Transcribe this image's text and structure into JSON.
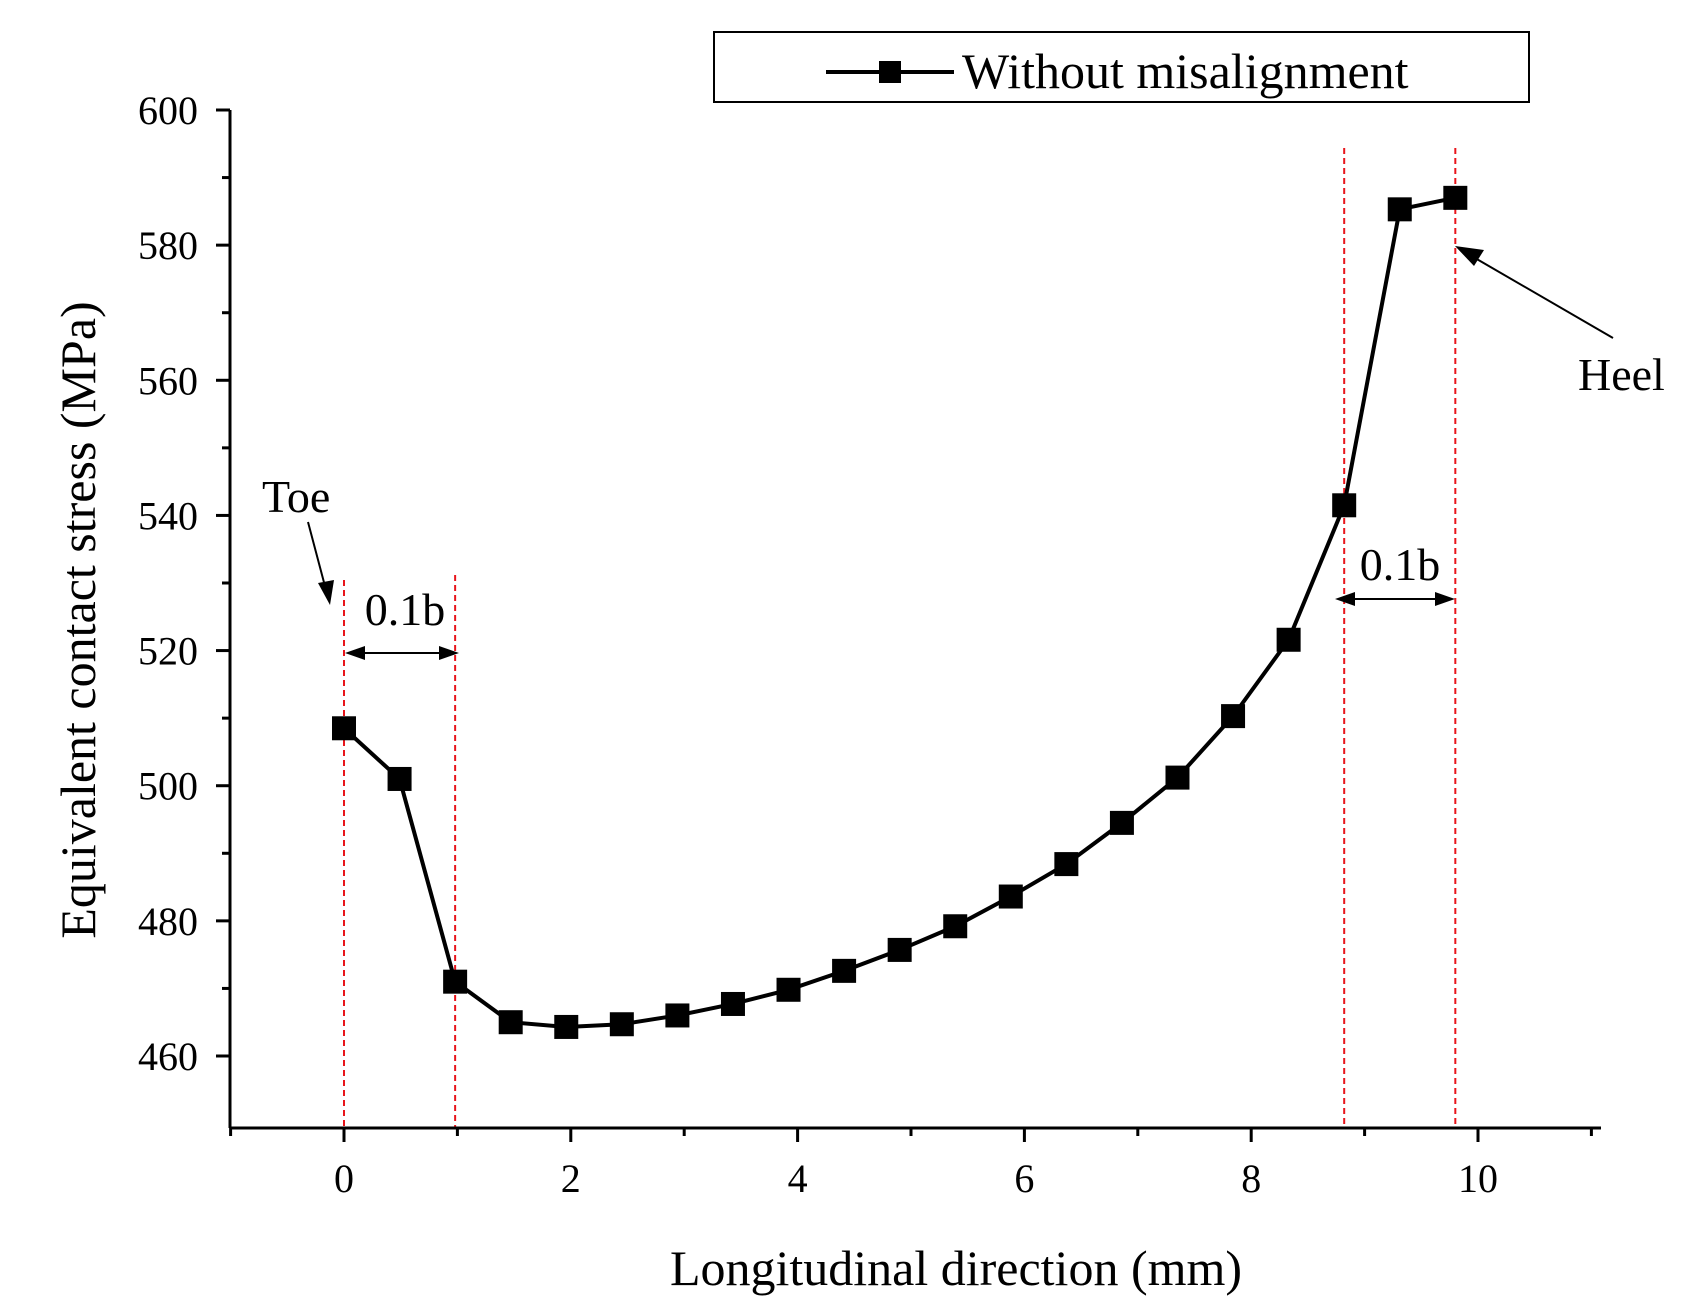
{
  "chart_data": {
    "type": "line",
    "title": "",
    "xlabel": "Longitudinal direction (mm)",
    "ylabel": "Equivalent contact stress (MPa)",
    "xlim": [
      -1,
      11
    ],
    "ylim": [
      450,
      600
    ],
    "xticks": [
      0,
      2,
      4,
      6,
      8,
      10
    ],
    "yticks": [
      460,
      480,
      500,
      520,
      540,
      560,
      580,
      600
    ],
    "legend": {
      "label": "Without misalignment",
      "position": "top-right"
    },
    "series": [
      {
        "name": "Without misalignment",
        "x": [
          0,
          0.49,
          0.98,
          1.47,
          1.96,
          2.45,
          2.94,
          3.43,
          3.92,
          4.41,
          4.9,
          5.39,
          5.88,
          6.37,
          6.86,
          7.35,
          7.84,
          8.33,
          8.82,
          9.31,
          9.8
        ],
        "values": [
          508.5,
          501,
          471,
          465,
          464.3,
          464.7,
          466,
          467.7,
          469.8,
          472.6,
          475.7,
          479.2,
          483.6,
          488.4,
          494.5,
          501.2,
          510.3,
          521.6,
          541.5,
          585.3,
          587
        ]
      }
    ],
    "reference_lines_x": [
      0,
      0.98,
      8.82,
      9.8
    ],
    "annotations": {
      "toe": "Toe",
      "heel": "Heel",
      "left_span": "0.1b",
      "right_span": "0.1b"
    }
  }
}
